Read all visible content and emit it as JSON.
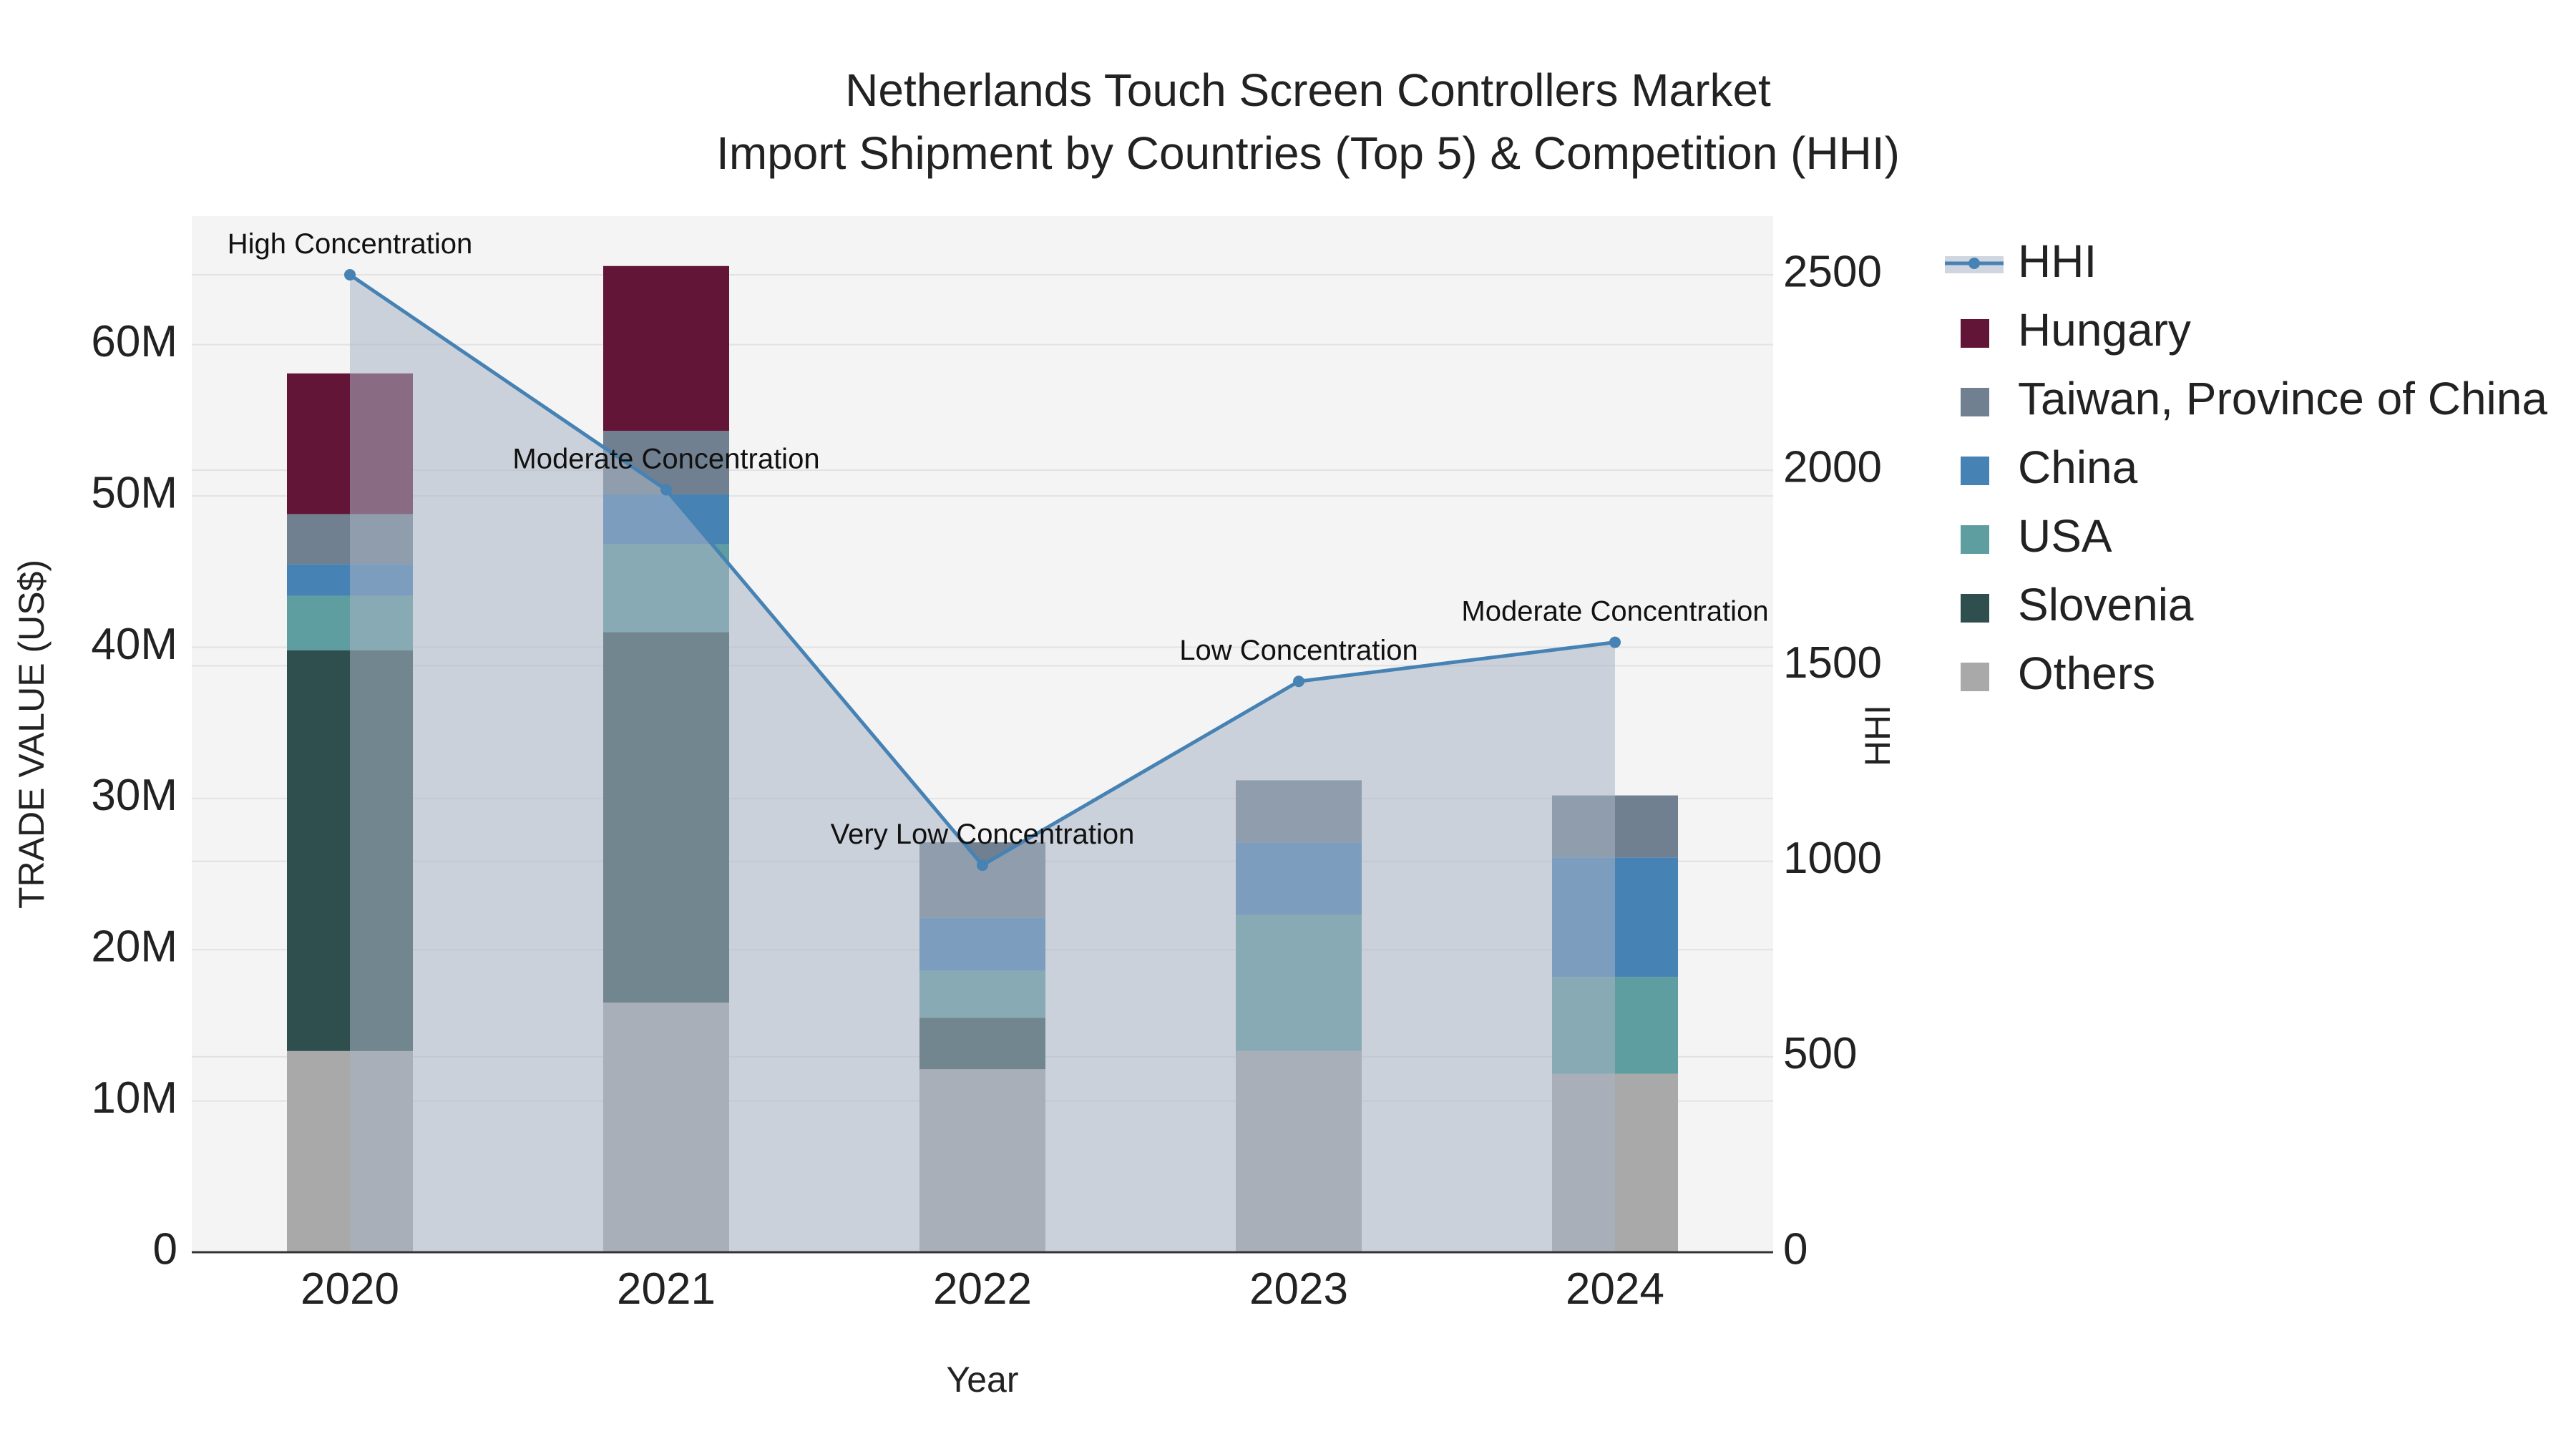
{
  "chart_data": {
    "type": "bar",
    "title": "Netherlands Touch Screen Controllers Market",
    "subtitle": "Import Shipment by Countries (Top 5) & Competition (HHI)",
    "xlabel": "Year",
    "ylabel": "TRADE VALUE (US$)",
    "y2label": "HHI",
    "categories": [
      "2020",
      "2021",
      "2022",
      "2023",
      "2024"
    ],
    "ylim": [
      0,
      68500000
    ],
    "y2lim": [
      0,
      2650
    ],
    "yticks": [
      0,
      10000000,
      20000000,
      30000000,
      40000000,
      50000000,
      60000000
    ],
    "ytick_labels": [
      "0",
      "10M",
      "20M",
      "30M",
      "40M",
      "50M",
      "60M"
    ],
    "y2ticks": [
      0,
      500,
      1000,
      1500,
      2000,
      2500
    ],
    "y2tick_labels": [
      "0",
      "500",
      "1000",
      "1500",
      "2000",
      "2500"
    ],
    "series": [
      {
        "name": "Others",
        "color": "#a9a9a9",
        "values": [
          13300000,
          16500000,
          12100000,
          13300000,
          11800000
        ]
      },
      {
        "name": "Slovenia",
        "color": "#2f4f4f",
        "values": [
          26500000,
          24500000,
          3400000,
          0,
          0
        ]
      },
      {
        "name": "USA",
        "color": "#5f9ea0",
        "values": [
          3600000,
          5800000,
          3100000,
          9000000,
          6400000
        ]
      },
      {
        "name": "China",
        "color": "#4682b4",
        "values": [
          2100000,
          3300000,
          3500000,
          4800000,
          7900000
        ]
      },
      {
        "name": "Taiwan, Province of China",
        "color": "#708090",
        "values": [
          3300000,
          4200000,
          5000000,
          4100000,
          4100000
        ]
      },
      {
        "name": "Hungary",
        "color": "#621537",
        "values": [
          9300000,
          10900000,
          0,
          0,
          0
        ]
      }
    ],
    "hhi": {
      "name": "HHI",
      "color": "#4682b4",
      "values": [
        2500,
        1950,
        990,
        1460,
        1560
      ],
      "labels": [
        "High Concentration",
        "Moderate Concentration",
        "Very Low Concentration",
        "Low Concentration",
        "Moderate Concentration"
      ]
    },
    "legend_order": [
      "HHI",
      "Hungary",
      "Taiwan, Province of China",
      "China",
      "USA",
      "Slovenia",
      "Others"
    ],
    "legend_position": "right"
  }
}
